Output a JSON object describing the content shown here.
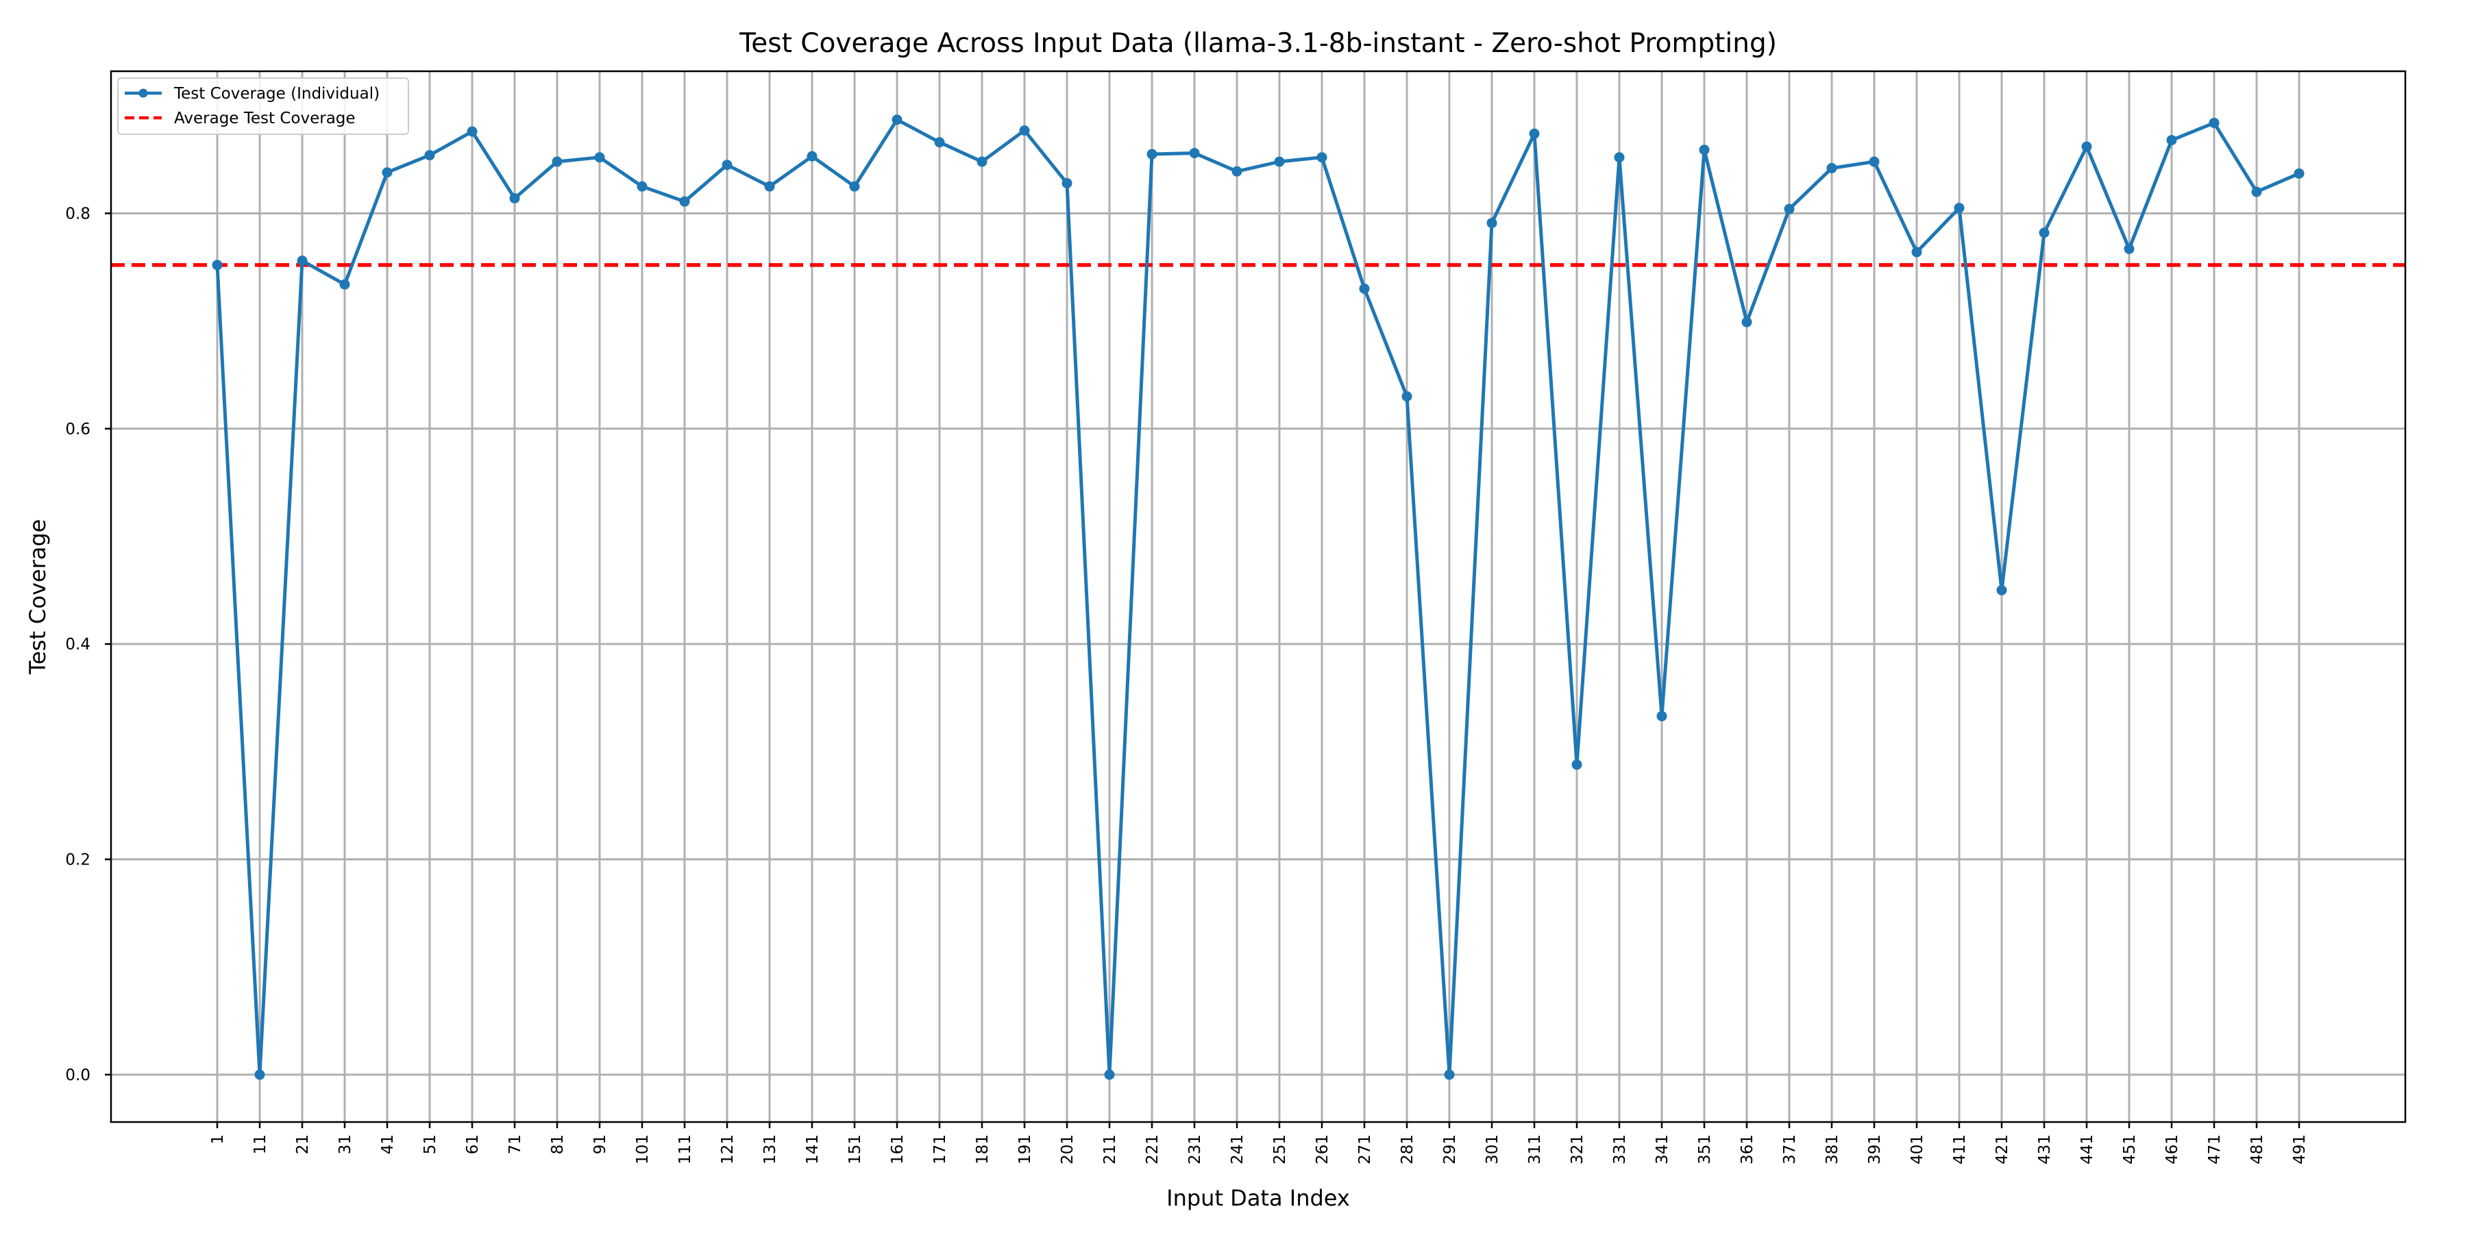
{
  "chart_data": {
    "type": "line",
    "title": "Test Coverage Across Input Data (llama-3.1-8b-instant - Zero-shot Prompting)",
    "xlabel": "Input Data Index",
    "ylabel": "Test Coverage",
    "x": [
      1,
      11,
      21,
      31,
      41,
      51,
      61,
      71,
      81,
      91,
      101,
      111,
      121,
      131,
      141,
      151,
      161,
      171,
      181,
      191,
      201,
      211,
      221,
      231,
      241,
      251,
      261,
      271,
      281,
      291,
      301,
      311,
      321,
      331,
      341,
      351,
      361,
      371,
      381,
      391,
      401,
      411,
      421,
      431,
      441,
      451,
      461,
      471,
      481,
      491
    ],
    "x_tick_labels": [
      "1",
      "11",
      "21",
      "31",
      "41",
      "51",
      "61",
      "71",
      "81",
      "91",
      "101",
      "111",
      "121",
      "131",
      "141",
      "151",
      "161",
      "171",
      "181",
      "191",
      "201",
      "211",
      "221",
      "231",
      "241",
      "251",
      "261",
      "271",
      "281",
      "291",
      "301",
      "311",
      "321",
      "331",
      "341",
      "351",
      "361",
      "371",
      "381",
      "391",
      "401",
      "411",
      "421",
      "431",
      "441",
      "451",
      "461",
      "471",
      "481",
      "491"
    ],
    "y_ticks": [
      0.0,
      0.2,
      0.4,
      0.6,
      0.8
    ],
    "y_tick_labels": [
      "0.0",
      "0.2",
      "0.4",
      "0.6",
      "0.8"
    ],
    "xlim": [
      -24,
      516
    ],
    "ylim": [
      -0.044,
      0.932
    ],
    "grid": true,
    "legend_position": "upper-left",
    "series": [
      {
        "name": "Test Coverage (Individual)",
        "color": "#1f77b4",
        "style": "solid-with-markers",
        "values": [
          0.752,
          0.0,
          0.756,
          0.734,
          0.838,
          0.854,
          0.876,
          0.814,
          0.848,
          0.852,
          0.825,
          0.811,
          0.845,
          0.825,
          0.853,
          0.825,
          0.887,
          0.866,
          0.848,
          0.877,
          0.828,
          0.0,
          0.855,
          0.856,
          0.839,
          0.848,
          0.852,
          0.73,
          0.63,
          0.0,
          0.791,
          0.874,
          0.288,
          0.852,
          0.333,
          0.859,
          0.699,
          0.804,
          0.842,
          0.848,
          0.764,
          0.805,
          0.45,
          0.782,
          0.862,
          0.767,
          0.868,
          0.884,
          0.82,
          0.837
        ]
      },
      {
        "name": "Average Test Coverage",
        "color": "#ff0000",
        "style": "dashed",
        "value": 0.752
      }
    ]
  }
}
